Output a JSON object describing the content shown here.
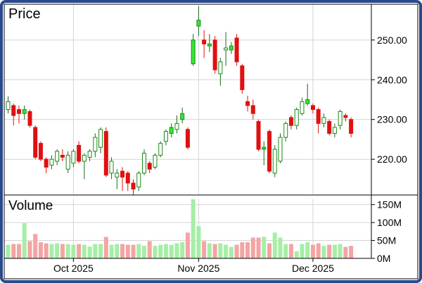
{
  "chart_data": {
    "type": "candlestick",
    "title": "",
    "price_panel": {
      "label": "Price",
      "ylim": [
        211,
        259
      ],
      "y_ticks": [
        {
          "value": 250,
          "label": "250.00"
        },
        {
          "value": 240,
          "label": "240.00"
        },
        {
          "value": 230,
          "label": "230.00"
        },
        {
          "value": 220,
          "label": "220.00"
        }
      ],
      "grid": true
    },
    "volume_panel": {
      "label": "Volume",
      "unit": "M",
      "ylim": [
        0,
        165
      ],
      "y_ticks": [
        {
          "value": 150,
          "label": "150M"
        },
        {
          "value": 100,
          "label": "100M"
        },
        {
          "value": 50,
          "label": "50M"
        },
        {
          "value": 0,
          "label": "0M"
        }
      ],
      "grid": true
    },
    "x_ticks": [
      {
        "index": 12,
        "label": "Oct 2025"
      },
      {
        "index": 35,
        "label": "Nov 2025"
      },
      {
        "index": 56,
        "label": "Dec 2025"
      }
    ],
    "colors": {
      "up": "#33e833",
      "down": "#e01010",
      "up_outline": "#1a8a1a",
      "vol_up": "#a6eea6",
      "vol_down": "#f4a4a4",
      "frame": "#2b4a8a",
      "grid": "#d4d4d4"
    },
    "candles": [
      {
        "o": 232.5,
        "h": 235.8,
        "l": 231.5,
        "c": 234.5,
        "v": 38,
        "s": "up"
      },
      {
        "o": 233.5,
        "h": 234.0,
        "l": 228.5,
        "c": 231.0,
        "v": 40,
        "s": "down"
      },
      {
        "o": 232.5,
        "h": 233.5,
        "l": 229.0,
        "c": 231.5,
        "v": 40,
        "s": "down"
      },
      {
        "o": 231.5,
        "h": 233.5,
        "l": 230.0,
        "c": 232.5,
        "v": 98,
        "s": "fill"
      },
      {
        "o": 232.0,
        "h": 232.5,
        "l": 228.0,
        "c": 228.5,
        "v": 48,
        "s": "down"
      },
      {
        "o": 228.0,
        "h": 228.5,
        "l": 220.0,
        "c": 220.5,
        "v": 68,
        "s": "down"
      },
      {
        "o": 224.0,
        "h": 224.5,
        "l": 219.5,
        "c": 220.0,
        "v": 45,
        "s": "down"
      },
      {
        "o": 220.0,
        "h": 220.5,
        "l": 216.5,
        "c": 218.0,
        "v": 42,
        "s": "down"
      },
      {
        "o": 218.5,
        "h": 221.0,
        "l": 217.5,
        "c": 220.0,
        "v": 40,
        "s": "up"
      },
      {
        "o": 219.5,
        "h": 222.5,
        "l": 218.5,
        "c": 222.0,
        "v": 42,
        "s": "up"
      },
      {
        "o": 220.5,
        "h": 222.5,
        "l": 219.5,
        "c": 221.0,
        "v": 40,
        "s": "down"
      },
      {
        "o": 217.5,
        "h": 222.0,
        "l": 216.5,
        "c": 221.0,
        "v": 40,
        "s": "up"
      },
      {
        "o": 219.0,
        "h": 222.5,
        "l": 218.0,
        "c": 222.0,
        "v": 38,
        "s": "up"
      },
      {
        "o": 223.5,
        "h": 224.5,
        "l": 219.0,
        "c": 219.5,
        "v": 40,
        "s": "down"
      },
      {
        "o": 219.5,
        "h": 221.5,
        "l": 215.0,
        "c": 221.0,
        "v": 38,
        "s": "up"
      },
      {
        "o": 220.5,
        "h": 222.5,
        "l": 219.5,
        "c": 222.0,
        "v": 33,
        "s": "up"
      },
      {
        "o": 222.0,
        "h": 226.5,
        "l": 220.5,
        "c": 225.5,
        "v": 40,
        "s": "up"
      },
      {
        "o": 223.0,
        "h": 228.0,
        "l": 221.5,
        "c": 227.5,
        "v": 40,
        "s": "up"
      },
      {
        "o": 227.0,
        "h": 228.0,
        "l": 215.5,
        "c": 216.0,
        "v": 60,
        "s": "down"
      },
      {
        "o": 216.5,
        "h": 220.5,
        "l": 215.0,
        "c": 219.5,
        "v": 38,
        "s": "up"
      },
      {
        "o": 215.5,
        "h": 217.5,
        "l": 212.5,
        "c": 216.5,
        "v": 40,
        "s": "up"
      },
      {
        "o": 217.0,
        "h": 218.0,
        "l": 212.0,
        "c": 215.5,
        "v": 40,
        "s": "down"
      },
      {
        "o": 216.5,
        "h": 217.0,
        "l": 212.0,
        "c": 214.0,
        "v": 38,
        "s": "down"
      },
      {
        "o": 214.0,
        "h": 215.0,
        "l": 211.0,
        "c": 212.5,
        "v": 38,
        "s": "down"
      },
      {
        "o": 213.0,
        "h": 217.0,
        "l": 212.0,
        "c": 216.5,
        "v": 40,
        "s": "up"
      },
      {
        "o": 216.5,
        "h": 222.5,
        "l": 216.0,
        "c": 221.5,
        "v": 35,
        "s": "up"
      },
      {
        "o": 219.0,
        "h": 219.5,
        "l": 216.5,
        "c": 217.5,
        "v": 48,
        "s": "down"
      },
      {
        "o": 218.0,
        "h": 221.5,
        "l": 217.5,
        "c": 221.0,
        "v": 35,
        "s": "up"
      },
      {
        "o": 221.0,
        "h": 224.5,
        "l": 220.5,
        "c": 224.0,
        "v": 38,
        "s": "up"
      },
      {
        "o": 224.5,
        "h": 227.5,
        "l": 223.5,
        "c": 227.0,
        "v": 40,
        "s": "up"
      },
      {
        "o": 226.5,
        "h": 229.0,
        "l": 225.5,
        "c": 228.0,
        "v": 38,
        "s": "fill"
      },
      {
        "o": 227.5,
        "h": 231.0,
        "l": 226.5,
        "c": 229.0,
        "v": 42,
        "s": "up"
      },
      {
        "o": 230.0,
        "h": 233.0,
        "l": 229.0,
        "c": 231.5,
        "v": 45,
        "s": "fill"
      },
      {
        "o": 227.5,
        "h": 228.0,
        "l": 222.5,
        "c": 223.0,
        "v": 72,
        "s": "down"
      },
      {
        "o": 244.0,
        "h": 251.5,
        "l": 243.5,
        "c": 250.0,
        "v": 165,
        "s": "fill"
      },
      {
        "o": 253.5,
        "h": 258.5,
        "l": 251.0,
        "c": 255.0,
        "v": 90,
        "s": "fill"
      },
      {
        "o": 250.0,
        "h": 252.5,
        "l": 245.5,
        "c": 249.0,
        "v": 48,
        "s": "down"
      },
      {
        "o": 249.0,
        "h": 251.5,
        "l": 247.0,
        "c": 248.5,
        "v": 42,
        "s": "fill"
      },
      {
        "o": 250.0,
        "h": 251.0,
        "l": 241.5,
        "c": 242.5,
        "v": 40,
        "s": "down"
      },
      {
        "o": 241.5,
        "h": 245.5,
        "l": 238.5,
        "c": 244.5,
        "v": 42,
        "s": "up"
      },
      {
        "o": 247.5,
        "h": 252.0,
        "l": 243.5,
        "c": 248.0,
        "v": 38,
        "s": "up"
      },
      {
        "o": 247.5,
        "h": 249.5,
        "l": 246.5,
        "c": 248.5,
        "v": 32,
        "s": "fill"
      },
      {
        "o": 250.5,
        "h": 251.5,
        "l": 243.5,
        "c": 244.5,
        "v": 38,
        "s": "down"
      },
      {
        "o": 243.5,
        "h": 244.0,
        "l": 236.5,
        "c": 237.5,
        "v": 45,
        "s": "down"
      },
      {
        "o": 234.5,
        "h": 236.0,
        "l": 232.0,
        "c": 233.5,
        "v": 45,
        "s": "down"
      },
      {
        "o": 233.5,
        "h": 235.0,
        "l": 230.0,
        "c": 231.5,
        "v": 58,
        "s": "down"
      },
      {
        "o": 229.5,
        "h": 230.0,
        "l": 222.0,
        "c": 222.5,
        "v": 58,
        "s": "down"
      },
      {
        "o": 223.0,
        "h": 224.5,
        "l": 218.5,
        "c": 222.5,
        "v": 60,
        "s": "fill"
      },
      {
        "o": 227.0,
        "h": 227.5,
        "l": 216.5,
        "c": 217.0,
        "v": 42,
        "s": "down"
      },
      {
        "o": 216.5,
        "h": 223.5,
        "l": 215.5,
        "c": 222.5,
        "v": 72,
        "s": "up"
      },
      {
        "o": 219.5,
        "h": 226.5,
        "l": 219.0,
        "c": 225.5,
        "v": 58,
        "s": "up"
      },
      {
        "o": 225.5,
        "h": 229.5,
        "l": 224.5,
        "c": 229.0,
        "v": 40,
        "s": "up"
      },
      {
        "o": 230.5,
        "h": 231.0,
        "l": 227.5,
        "c": 228.5,
        "v": 40,
        "s": "down"
      },
      {
        "o": 228.5,
        "h": 233.0,
        "l": 227.5,
        "c": 232.5,
        "v": 20,
        "s": "up"
      },
      {
        "o": 231.5,
        "h": 235.5,
        "l": 231.0,
        "c": 234.5,
        "v": 40,
        "s": "up"
      },
      {
        "o": 234.0,
        "h": 239.0,
        "l": 233.5,
        "c": 235.0,
        "v": 45,
        "s": "fill"
      },
      {
        "o": 233.5,
        "h": 234.0,
        "l": 231.5,
        "c": 232.5,
        "v": 38,
        "s": "down"
      },
      {
        "o": 232.5,
        "h": 233.0,
        "l": 226.5,
        "c": 229.0,
        "v": 42,
        "s": "down"
      },
      {
        "o": 229.0,
        "h": 231.5,
        "l": 228.0,
        "c": 230.5,
        "v": 35,
        "s": "up"
      },
      {
        "o": 229.5,
        "h": 230.0,
        "l": 226.0,
        "c": 226.5,
        "v": 38,
        "s": "down"
      },
      {
        "o": 226.5,
        "h": 229.0,
        "l": 225.5,
        "c": 228.0,
        "v": 38,
        "s": "up"
      },
      {
        "o": 228.5,
        "h": 232.5,
        "l": 227.5,
        "c": 232.0,
        "v": 40,
        "s": "up"
      },
      {
        "o": 231.0,
        "h": 231.5,
        "l": 229.5,
        "c": 230.5,
        "v": 32,
        "s": "down"
      },
      {
        "o": 230.0,
        "h": 230.5,
        "l": 225.5,
        "c": 226.5,
        "v": 35,
        "s": "down"
      }
    ]
  }
}
